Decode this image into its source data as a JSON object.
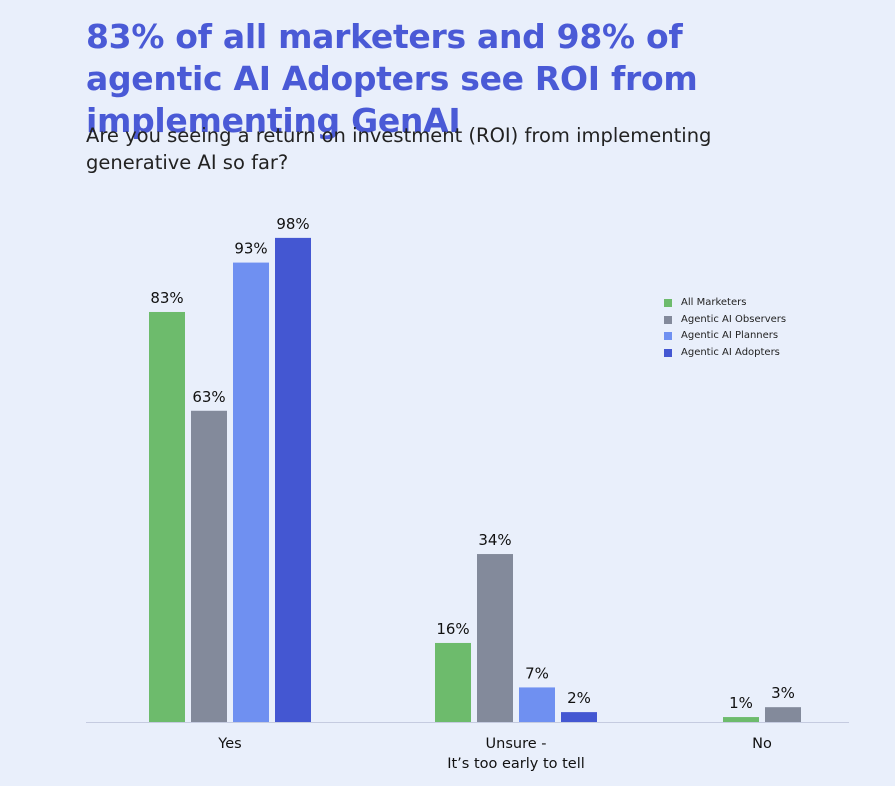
{
  "chart_data": {
    "type": "bar",
    "title": "83% of all marketers and 98% of agentic AI Adopters see ROI from implementing GenAI",
    "subtitle": "Are you seeing a return on investment (ROI) from implementing generative AI so far?",
    "categories": [
      "Yes",
      "Unsure -\nIt’s too early to tell",
      "No"
    ],
    "series": [
      {
        "name": "All Marketers",
        "color": "#6dbb6c",
        "values": [
          83,
          16,
          1
        ],
        "value_labels": [
          "83%",
          "16%",
          "1%"
        ]
      },
      {
        "name": "Agentic AI Observers",
        "color": "#838a9b",
        "values": [
          63,
          34,
          3
        ],
        "value_labels": [
          "63%",
          "34%",
          "3%"
        ]
      },
      {
        "name": "Agentic AI Planners",
        "color": "#6f90f1",
        "values": [
          93,
          7,
          null
        ],
        "value_labels": [
          "93%",
          "7%",
          null
        ]
      },
      {
        "name": "Agentic AI Adopters",
        "color": "#4457d2",
        "values": [
          98,
          2,
          null
        ],
        "value_labels": [
          "98%",
          "2%",
          null
        ]
      }
    ],
    "legend": "right"
  }
}
